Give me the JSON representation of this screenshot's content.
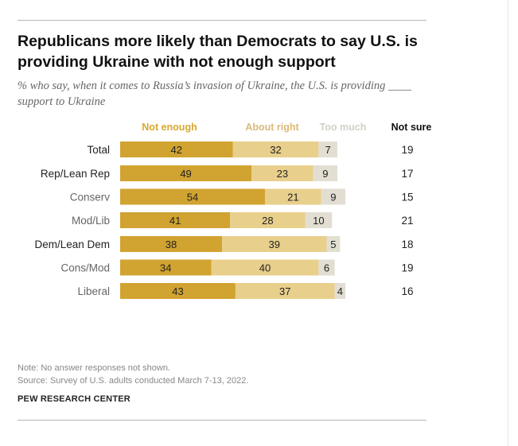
{
  "title": "Republicans more likely than Democrats to say U.S. is providing Ukraine with not enough support",
  "subtitle": "% who say, when it comes to Russia’s invasion of Ukraine, the U.S. is providing ____ support to Ukraine",
  "note": "Note: No answer responses not shown.",
  "source": "Source: Survey of U.S. adults conducted March 7-13, 2022.",
  "org": "PEW RESEARCH CENTER",
  "colors": {
    "not_enough": "#D1A330",
    "about_right": "#E8CF8C",
    "too_much": "#E2DED2",
    "label_not_enough": "#D9A82E",
    "label_about_right": "#DDB97A",
    "label_too_much": "#D2D0C8",
    "label_not_sure": "#111111",
    "row_dark": "#222222",
    "row_light": "#666666"
  },
  "chart_data": {
    "type": "bar",
    "stacked": true,
    "orientation": "horizontal",
    "series": [
      {
        "name": "Not enough",
        "values": [
          42,
          49,
          54,
          41,
          38,
          34,
          43
        ]
      },
      {
        "name": "About right",
        "values": [
          32,
          23,
          21,
          28,
          39,
          40,
          37
        ]
      },
      {
        "name": "Too much",
        "values": [
          7,
          9,
          9,
          10,
          5,
          6,
          4
        ]
      }
    ],
    "not_sure": {
      "name": "Not sure",
      "values": [
        19,
        17,
        15,
        21,
        18,
        19,
        16
      ]
    },
    "categories": [
      "Total",
      "Rep/Lean Rep",
      "Conserv",
      "Mod/Lib",
      "Dem/Lean Dem",
      "Cons/Mod",
      "Liberal"
    ],
    "category_emphasis": [
      true,
      true,
      false,
      false,
      true,
      false,
      false
    ],
    "groups": [
      [
        0
      ],
      [
        1,
        2,
        3
      ],
      [
        4,
        5,
        6
      ]
    ],
    "xlim": [
      0,
      100
    ]
  }
}
